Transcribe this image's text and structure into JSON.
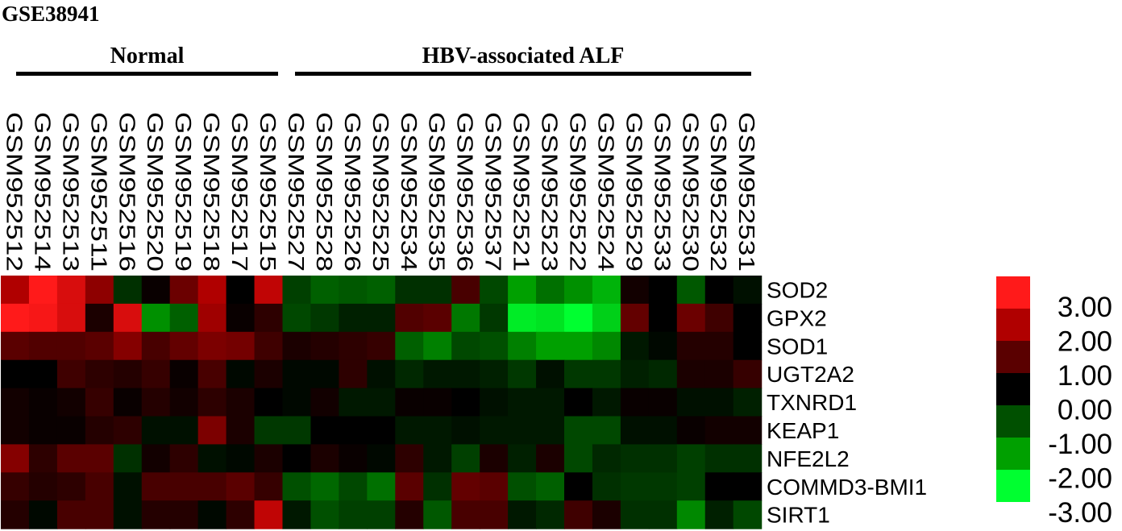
{
  "dataset": "GSE38941",
  "groups": [
    {
      "label": "Normal"
    },
    {
      "label": "HBV-associated ALF"
    }
  ],
  "chart_data": {
    "type": "heatmap",
    "title": "",
    "samples": [
      "GSM952512",
      "GSM952514",
      "GSM952513",
      "GSM952511",
      "GSM952516",
      "GSM952520",
      "GSM952519",
      "GSM952518",
      "GSM952517",
      "GSM952515",
      "GSM952527",
      "GSM952528",
      "GSM952526",
      "GSM952525",
      "GSM952534",
      "GSM952535",
      "GSM952536",
      "GSM952537",
      "GSM952521",
      "GSM952523",
      "GSM952522",
      "GSM952524",
      "GSM952529",
      "GSM952533",
      "GSM952530",
      "GSM952532",
      "GSM952531"
    ],
    "genes": [
      "SOD2",
      "GPX2",
      "SOD1",
      "UGT2A2",
      "TXNRD1",
      "KEAP1",
      "NFE2L2",
      "COMMD3-BMI1",
      "SIRT1"
    ],
    "values": [
      [
        2.0,
        3.0,
        2.5,
        1.6,
        -0.6,
        0.1,
        1.2,
        2.0,
        0.0,
        2.2,
        -0.8,
        -1.2,
        -1.1,
        -1.2,
        -0.6,
        -0.6,
        0.8,
        -0.9,
        -2.0,
        -1.4,
        -1.8,
        -2.2,
        0.2,
        0.0,
        -1.1,
        0.0,
        -0.2
      ],
      [
        3.0,
        2.9,
        2.5,
        0.3,
        2.5,
        -1.8,
        -1.2,
        1.8,
        0.1,
        0.5,
        -0.9,
        -0.7,
        -0.4,
        -0.4,
        0.9,
        1.0,
        -1.5,
        -0.7,
        -2.8,
        -2.7,
        -3.0,
        -2.5,
        1.1,
        0.0,
        1.2,
        0.7,
        0.0
      ],
      [
        1.0,
        0.9,
        0.9,
        1.0,
        1.5,
        0.8,
        1.1,
        1.4,
        1.3,
        0.7,
        0.3,
        0.4,
        0.5,
        0.6,
        -1.2,
        -1.6,
        -0.9,
        -1.0,
        -1.6,
        -2.0,
        -2.0,
        -1.7,
        -0.3,
        -0.1,
        0.4,
        0.4,
        0.0
      ],
      [
        0.0,
        0.0,
        0.7,
        0.5,
        0.4,
        0.6,
        0.1,
        0.8,
        -0.1,
        0.3,
        -0.1,
        -0.1,
        0.5,
        -0.2,
        -0.5,
        -0.3,
        -0.3,
        -0.4,
        -0.7,
        -0.2,
        -0.7,
        -0.7,
        -0.4,
        -0.5,
        0.3,
        0.3,
        0.6
      ],
      [
        0.2,
        0.1,
        0.2,
        0.6,
        0.1,
        0.4,
        0.2,
        0.5,
        0.3,
        0.0,
        -0.1,
        0.2,
        -0.3,
        -0.3,
        0.1,
        0.1,
        0.0,
        -0.2,
        -0.3,
        -0.3,
        0.0,
        -0.3,
        0.1,
        0.1,
        -0.2,
        -0.2,
        -0.4
      ],
      [
        0.2,
        0.1,
        0.1,
        0.4,
        0.5,
        -0.2,
        -0.2,
        1.4,
        0.3,
        -0.7,
        -0.7,
        0.0,
        0.0,
        0.0,
        -0.3,
        -0.3,
        -0.2,
        -0.3,
        -0.3,
        -0.3,
        -0.9,
        -0.9,
        -0.2,
        -0.2,
        0.1,
        0.2,
        0.2
      ],
      [
        1.5,
        0.5,
        1.0,
        1.0,
        -0.6,
        0.2,
        0.5,
        -0.2,
        -0.1,
        0.3,
        0.0,
        0.3,
        0.1,
        -0.1,
        0.5,
        -0.3,
        -0.8,
        0.3,
        -0.4,
        0.3,
        -0.9,
        -0.5,
        -0.6,
        -0.6,
        -0.8,
        -0.6,
        -0.6
      ],
      [
        0.6,
        0.4,
        0.5,
        0.8,
        -0.2,
        0.8,
        0.8,
        0.8,
        1.0,
        0.6,
        -1.0,
        -1.3,
        -0.9,
        -1.4,
        1.0,
        -0.6,
        1.1,
        1.0,
        -1.0,
        -1.2,
        0.0,
        -0.6,
        -0.7,
        -0.7,
        -0.8,
        0.0,
        0.0
      ],
      [
        0.4,
        -0.1,
        0.8,
        0.8,
        -0.2,
        0.4,
        0.4,
        -0.1,
        0.5,
        2.2,
        -0.3,
        -1.0,
        -0.8,
        -0.8,
        0.4,
        -1.1,
        0.8,
        0.8,
        -0.3,
        -0.5,
        0.7,
        0.3,
        -0.6,
        -0.6,
        -1.7,
        -0.4,
        -0.9
      ]
    ],
    "colorbar": {
      "ticks": [
        "3.00",
        "2.00",
        "1.00",
        "0.00",
        "-1.00",
        "-2.00",
        "-3.00"
      ],
      "colors": [
        "#ff1a1a",
        "#b00000",
        "#5a0000",
        "#000000",
        "#005000",
        "#00a000",
        "#00ff30"
      ]
    }
  }
}
